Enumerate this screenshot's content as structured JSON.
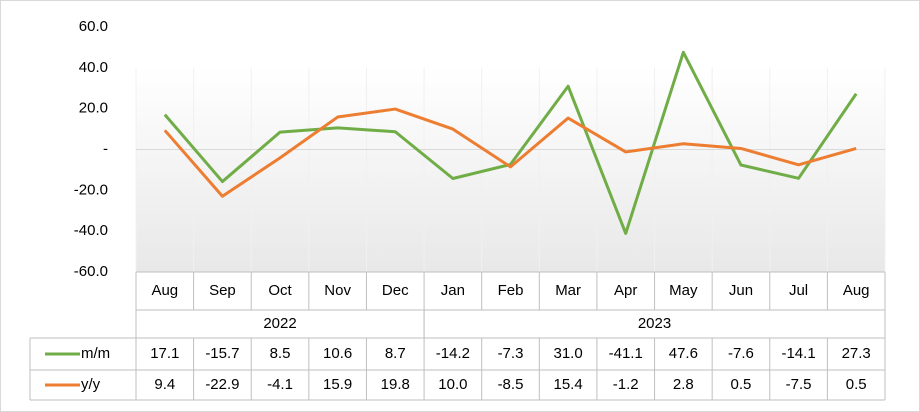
{
  "chart_data": {
    "type": "line",
    "category_groups": [
      {
        "name": "2022",
        "categories": [
          "Aug",
          "Sep",
          "Oct",
          "Nov",
          "Dec"
        ]
      },
      {
        "name": "2023",
        "categories": [
          "Jan",
          "Feb",
          "Mar",
          "Apr",
          "May",
          "Jun",
          "Jul",
          "Aug"
        ]
      }
    ],
    "series": [
      {
        "name": "m/m",
        "color": "#70ad47",
        "values": [
          17.1,
          -15.7,
          8.5,
          10.6,
          8.7,
          -14.2,
          -7.3,
          31.0,
          -41.1,
          47.6,
          -7.6,
          -14.1,
          27.3
        ],
        "value_labels": [
          "17.1",
          "-15.7",
          "8.5",
          "10.6",
          "8.7",
          "-14.2",
          "-7.3",
          "31.0",
          "-41.1",
          "47.6",
          "-7.6",
          "-14.1",
          "27.3"
        ]
      },
      {
        "name": "y/y",
        "color": "#ed7d31",
        "values": [
          9.4,
          -22.9,
          -4.1,
          15.9,
          19.8,
          10.0,
          -8.5,
          15.4,
          -1.2,
          2.8,
          0.5,
          -7.5,
          0.5
        ],
        "value_labels": [
          "9.4",
          "-22.9",
          "-4.1",
          "15.9",
          "19.8",
          "10.0",
          "-8.5",
          "15.4",
          "-1.2",
          "2.8",
          "0.5",
          "-7.5",
          "0.5"
        ]
      }
    ],
    "ylim": [
      -60,
      60
    ],
    "yticks": [
      {
        "value": 60,
        "label": "60.0"
      },
      {
        "value": 40,
        "label": "40.0"
      },
      {
        "value": 20,
        "label": "20.0"
      },
      {
        "value": 0,
        "label": "-"
      },
      {
        "value": -20,
        "label": "-20.0"
      },
      {
        "value": -40,
        "label": "-40.0"
      },
      {
        "value": -60,
        "label": "-60.0"
      }
    ],
    "grid": true
  }
}
